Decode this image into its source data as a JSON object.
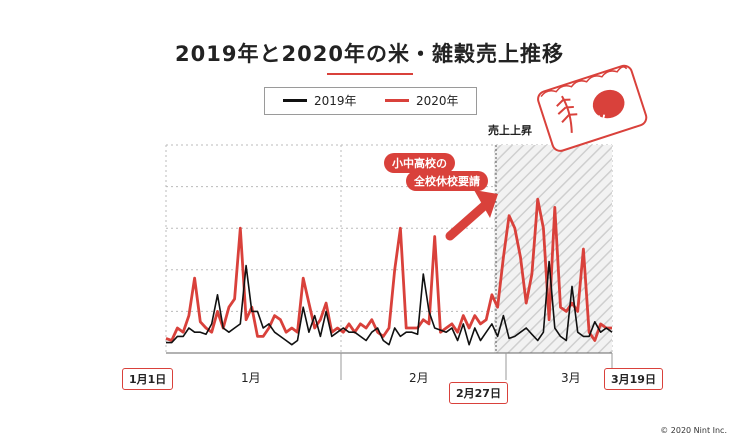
{
  "title": "2019年と2020年の米・雑穀売上推移",
  "legend": {
    "series_2019": "2019年",
    "series_2020": "2020年"
  },
  "annotations": {
    "rise": "売上上昇",
    "callout_line1": "小中高校の",
    "callout_line2": "全校休校要請",
    "bag_label": "米"
  },
  "date_labels": {
    "start": "1月1日",
    "announcement": "2月27日",
    "end": "3月19日"
  },
  "months": [
    "1月",
    "2月",
    "3月"
  ],
  "copyright": "© 2020 Nint Inc.",
  "colors": {
    "series_2019": "#111111",
    "series_2020": "#d9413b",
    "accent": "#d9413b"
  },
  "chart_data": {
    "type": "line",
    "x": [
      "1/1",
      "1/2",
      "1/3",
      "1/4",
      "1/5",
      "1/6",
      "1/7",
      "1/8",
      "1/9",
      "1/10",
      "1/11",
      "1/12",
      "1/13",
      "1/14",
      "1/15",
      "1/16",
      "1/17",
      "1/18",
      "1/19",
      "1/20",
      "1/21",
      "1/22",
      "1/23",
      "1/24",
      "1/25",
      "1/26",
      "1/27",
      "1/28",
      "1/29",
      "1/30",
      "1/31",
      "2/1",
      "2/2",
      "2/3",
      "2/4",
      "2/5",
      "2/6",
      "2/7",
      "2/8",
      "2/9",
      "2/10",
      "2/11",
      "2/12",
      "2/13",
      "2/14",
      "2/15",
      "2/16",
      "2/17",
      "2/18",
      "2/19",
      "2/20",
      "2/21",
      "2/22",
      "2/23",
      "2/24",
      "2/25",
      "2/26",
      "2/27",
      "2/28",
      "2/29",
      "3/1",
      "3/2",
      "3/3",
      "3/4",
      "3/5",
      "3/6",
      "3/7",
      "3/8",
      "3/9",
      "3/10",
      "3/11",
      "3/12",
      "3/13",
      "3/14",
      "3/15",
      "3/16",
      "3/17",
      "3/18",
      "3/19"
    ],
    "series": [
      {
        "name": "2019年",
        "values": [
          5,
          5,
          8,
          8,
          12,
          10,
          10,
          9,
          14,
          28,
          12,
          10,
          12,
          14,
          42,
          20,
          20,
          12,
          14,
          10,
          8,
          6,
          4,
          6,
          22,
          10,
          18,
          8,
          20,
          8,
          10,
          12,
          10,
          10,
          8,
          6,
          10,
          12,
          6,
          4,
          12,
          8,
          10,
          10,
          9,
          38,
          20,
          12,
          11,
          10,
          12,
          6,
          14,
          4,
          12,
          6,
          10,
          14,
          8,
          18,
          7,
          8,
          10,
          12,
          9,
          6,
          10,
          44,
          12,
          8,
          6,
          32,
          10,
          8,
          8,
          15,
          10,
          12,
          10
        ]
      },
      {
        "name": "2020年",
        "values": [
          7,
          6,
          12,
          10,
          18,
          36,
          15,
          12,
          10,
          20,
          12,
          22,
          26,
          60,
          16,
          22,
          8,
          8,
          12,
          18,
          16,
          10,
          12,
          10,
          36,
          24,
          12,
          16,
          24,
          10,
          12,
          10,
          14,
          10,
          14,
          12,
          16,
          10,
          8,
          12,
          40,
          60,
          12,
          12,
          12,
          16,
          14,
          56,
          10,
          12,
          14,
          10,
          18,
          12,
          18,
          14,
          16,
          28,
          22,
          46,
          66,
          60,
          46,
          24,
          38,
          74,
          60,
          16,
          70,
          22,
          20,
          24,
          20,
          50,
          10,
          6,
          14,
          12,
          12
        ]
      }
    ],
    "ylim": [
      0,
      100
    ],
    "grid": true,
    "legend_position": "top-center"
  }
}
